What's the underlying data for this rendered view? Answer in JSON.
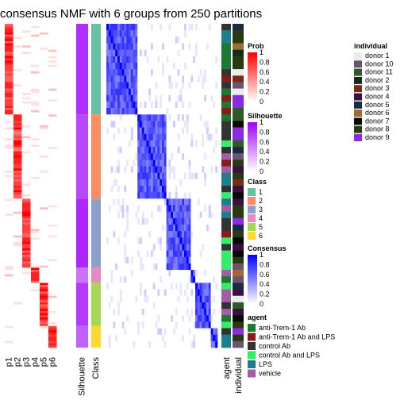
{
  "chart_data": {
    "type": "heatmap",
    "title": "consensus NMF with 6 groups from 250 partitions",
    "n_samples": 150,
    "class_sizes": [
      42,
      39,
      32,
      7,
      20,
      10
    ],
    "row_labels": [
      "p1",
      "p2",
      "p3",
      "p4",
      "p5",
      "p6",
      "Silhouette",
      "Class"
    ],
    "column_labels": [
      "agent",
      "individual"
    ],
    "silhouette_values": [
      0.82,
      0.72,
      0.85,
      0.55,
      0.78,
      0.62
    ],
    "colors": {
      "prob": "#ff0000",
      "silhouette": "#9f00ff",
      "consensus": "#0000ff",
      "class": [
        "#66c2a5",
        "#fc8d62",
        "#8da0cb",
        "#e78ac3",
        "#a6d854",
        "#ffd92f"
      ],
      "agent": [
        "#1a7a30",
        "#8b1a1a",
        "#333333",
        "#33ee66",
        "#1e7f8c",
        "#a45da4"
      ],
      "individual": [
        "#ebebeb",
        "#6a5470",
        "#2e5a2a",
        "#1a2a1a",
        "#7a2a1a",
        "#3a1040",
        "#1a2a44",
        "#a06a30",
        "#0a0a0a",
        "#2a3a10",
        "#8a2be2"
      ]
    },
    "legends": {
      "prob": {
        "title": "Prob",
        "ticks": [
          "1",
          "0.8",
          "0.6",
          "0.4",
          "0.2",
          "0"
        ]
      },
      "silhouette": {
        "title": "Silhouette",
        "ticks": [
          "1",
          "0.8",
          "0.6",
          "0.4",
          "0.2",
          "0"
        ]
      },
      "class": {
        "title": "Class",
        "items": [
          "1",
          "2",
          "3",
          "4",
          "5",
          "6"
        ]
      },
      "consensus": {
        "title": "Consensus",
        "ticks": [
          "1",
          "0.8",
          "0.6",
          "0.4",
          "0.2",
          "0"
        ]
      },
      "agent": {
        "title": "agent",
        "items": [
          "anti-Trem-1 Ab",
          "anti-Trem-1 Ab and LPS",
          "control Ab",
          "control Ab and LPS",
          "LPS",
          "vehicle"
        ]
      },
      "individual": {
        "title": "individual",
        "items": [
          "donor 1",
          "donor 10",
          "donor 11",
          "donor 2",
          "donor 3",
          "donor 4",
          "donor 5",
          "donor 6",
          "donor 7",
          "donor 8",
          "donor 9"
        ]
      }
    }
  }
}
